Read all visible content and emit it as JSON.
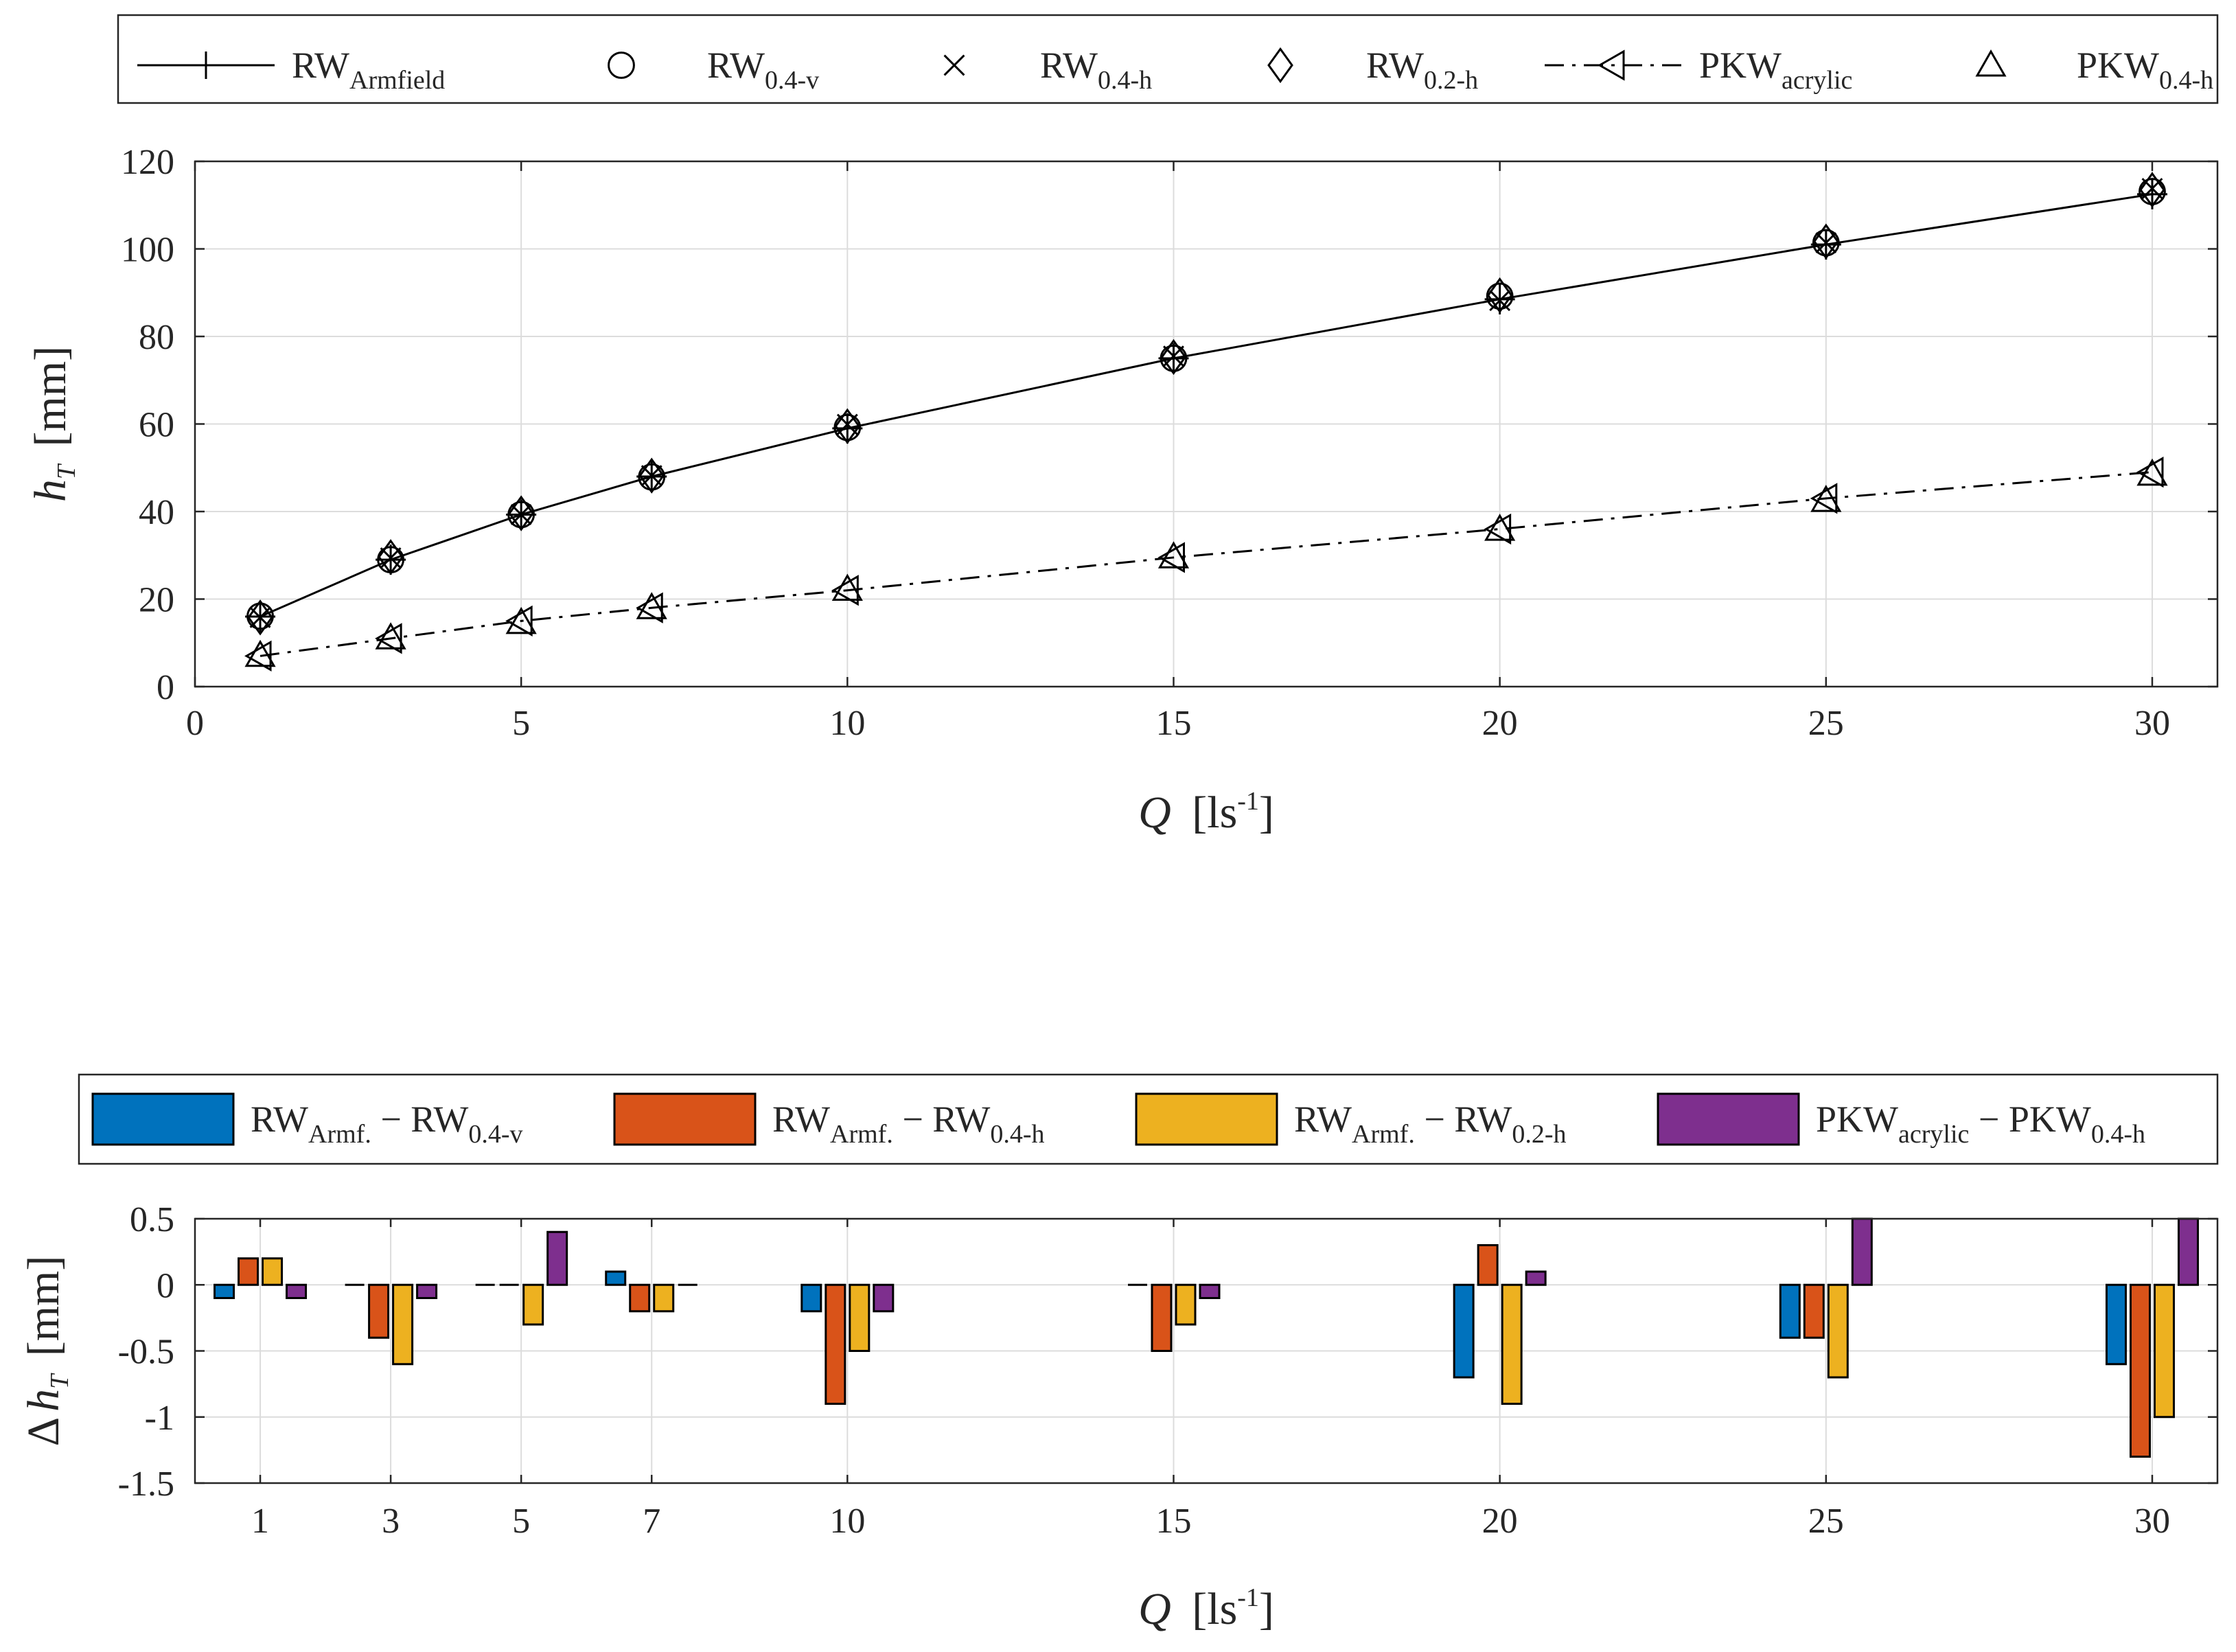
{
  "colors": {
    "rw_04v": "#0072BD",
    "rw_04h": "#D95319",
    "rw_02h": "#EDB120",
    "pkw": "#7E2F8E",
    "line": "#000000",
    "grid": "#dcdcdc"
  },
  "chart_data": [
    {
      "type": "line",
      "title": "",
      "xlabel": {
        "main": "Q",
        "unit": "[ls",
        "sup": "-1",
        "close": "]"
      },
      "ylabel": {
        "main": "h",
        "sub": "T",
        "unit": "[mm]"
      },
      "xlim": [
        0,
        31
      ],
      "ylim": [
        0,
        120
      ],
      "xticks": [
        0,
        5,
        10,
        15,
        20,
        25,
        30
      ],
      "yticks": [
        0,
        20,
        40,
        60,
        80,
        100,
        120
      ],
      "grid": true,
      "legend_position": "top",
      "legend": [
        {
          "base": "RW",
          "sub": "Armfield",
          "marker": "plus",
          "line": "solid"
        },
        {
          "base": "RW",
          "sub": "0.4-v",
          "marker": "circle",
          "line": "none"
        },
        {
          "base": "RW",
          "sub": "0.4-h",
          "marker": "x",
          "line": "none"
        },
        {
          "base": "RW",
          "sub": "0.2-h",
          "marker": "diamond",
          "line": "none"
        },
        {
          "base": "PKW",
          "sub": "acrylic",
          "marker": "triangle-left",
          "line": "dashdot"
        },
        {
          "base": "PKW",
          "sub": "0.4-h",
          "marker": "triangle-up",
          "line": "none"
        }
      ],
      "x": [
        1,
        3,
        5,
        7,
        10,
        15,
        20,
        25,
        30
      ],
      "series": [
        {
          "name": "RW Armfield",
          "marker": "plus",
          "line": "solid",
          "values": [
            16,
            29,
            39.3,
            48,
            59,
            75,
            88.5,
            101,
            112.5
          ]
        },
        {
          "name": "RW 0.4-v",
          "marker": "circle",
          "line": "none",
          "values": [
            16.1,
            29,
            39.3,
            47.9,
            59.2,
            75,
            89.2,
            101.4,
            113.1
          ]
        },
        {
          "name": "RW 0.4-h",
          "marker": "x",
          "line": "none",
          "values": [
            15.8,
            29.4,
            39.3,
            48.2,
            59.9,
            75.5,
            88.2,
            101.4,
            113.8
          ]
        },
        {
          "name": "RW 0.2-h",
          "marker": "diamond",
          "line": "none",
          "values": [
            15.8,
            29.6,
            39.6,
            48.2,
            59.5,
            75.3,
            89.4,
            101.7,
            113.5
          ]
        },
        {
          "name": "PKW acrylic",
          "marker": "triangle-left",
          "line": "dashdot",
          "values": [
            7,
            11,
            15,
            18,
            22,
            29.5,
            36,
            43,
            49
          ]
        },
        {
          "name": "PKW 0.4-h",
          "marker": "triangle-up",
          "line": "none",
          "values": [
            7.1,
            11.1,
            14.6,
            18,
            22.2,
            29.6,
            35.9,
            42.5,
            48.5
          ]
        }
      ]
    },
    {
      "type": "bar",
      "title": "",
      "xlabel": {
        "main": "Q",
        "unit": "[ls",
        "sup": "-1",
        "close": "]"
      },
      "ylabel": {
        "prefix": "Δ",
        "main": "h",
        "sub": "T",
        "unit": "[mm]"
      },
      "ylim": [
        -1.5,
        0.5
      ],
      "xlim": [
        0,
        31
      ],
      "yticks": [
        0.5,
        0,
        -0.5,
        -1,
        -1.5
      ],
      "ytick_labels": [
        "0.5",
        "0",
        "-0.5",
        "-1",
        "-1.5"
      ],
      "grid": true,
      "legend_position": "top",
      "categories": [
        1,
        3,
        5,
        7,
        10,
        15,
        20,
        25,
        30
      ],
      "category_labels": [
        "1",
        "3",
        "5",
        "7",
        "10",
        "15",
        "20",
        "25",
        "30"
      ],
      "series": [
        {
          "name": "RW Armf. − RW 0.4-v",
          "legend": {
            "a": "RW",
            "a_sub": "Armf.",
            "op": " − ",
            "b": "RW",
            "b_sub": "0.4-v"
          },
          "color_key": "rw_04v",
          "values": [
            -0.1,
            0,
            0,
            0.1,
            -0.2,
            0,
            -0.7,
            -0.4,
            -0.6
          ]
        },
        {
          "name": "RW Armf. − RW 0.4-h",
          "legend": {
            "a": "RW",
            "a_sub": "Armf.",
            "op": " − ",
            "b": "RW",
            "b_sub": "0.4-h"
          },
          "color_key": "rw_04h",
          "values": [
            0.2,
            -0.4,
            0,
            -0.2,
            -0.9,
            -0.5,
            0.3,
            -0.4,
            -1.3
          ]
        },
        {
          "name": "RW Armf. − RW 0.2-h",
          "legend": {
            "a": "RW",
            "a_sub": "Armf.",
            "op": " − ",
            "b": "RW",
            "b_sub": "0.2-h"
          },
          "color_key": "rw_02h",
          "values": [
            0.2,
            -0.6,
            -0.3,
            -0.2,
            -0.5,
            -0.3,
            -0.9,
            -0.7,
            -1.0
          ]
        },
        {
          "name": "PKW acrylic − PKW 0.4-h",
          "legend": {
            "a": "PKW",
            "a_sub": "acrylic",
            "op": " − ",
            "b": "PKW",
            "b_sub": "0.4-h"
          },
          "color_key": "pkw",
          "values": [
            -0.1,
            -0.1,
            0.4,
            0,
            -0.2,
            -0.1,
            0.1,
            0.5,
            0.5
          ]
        }
      ]
    }
  ]
}
